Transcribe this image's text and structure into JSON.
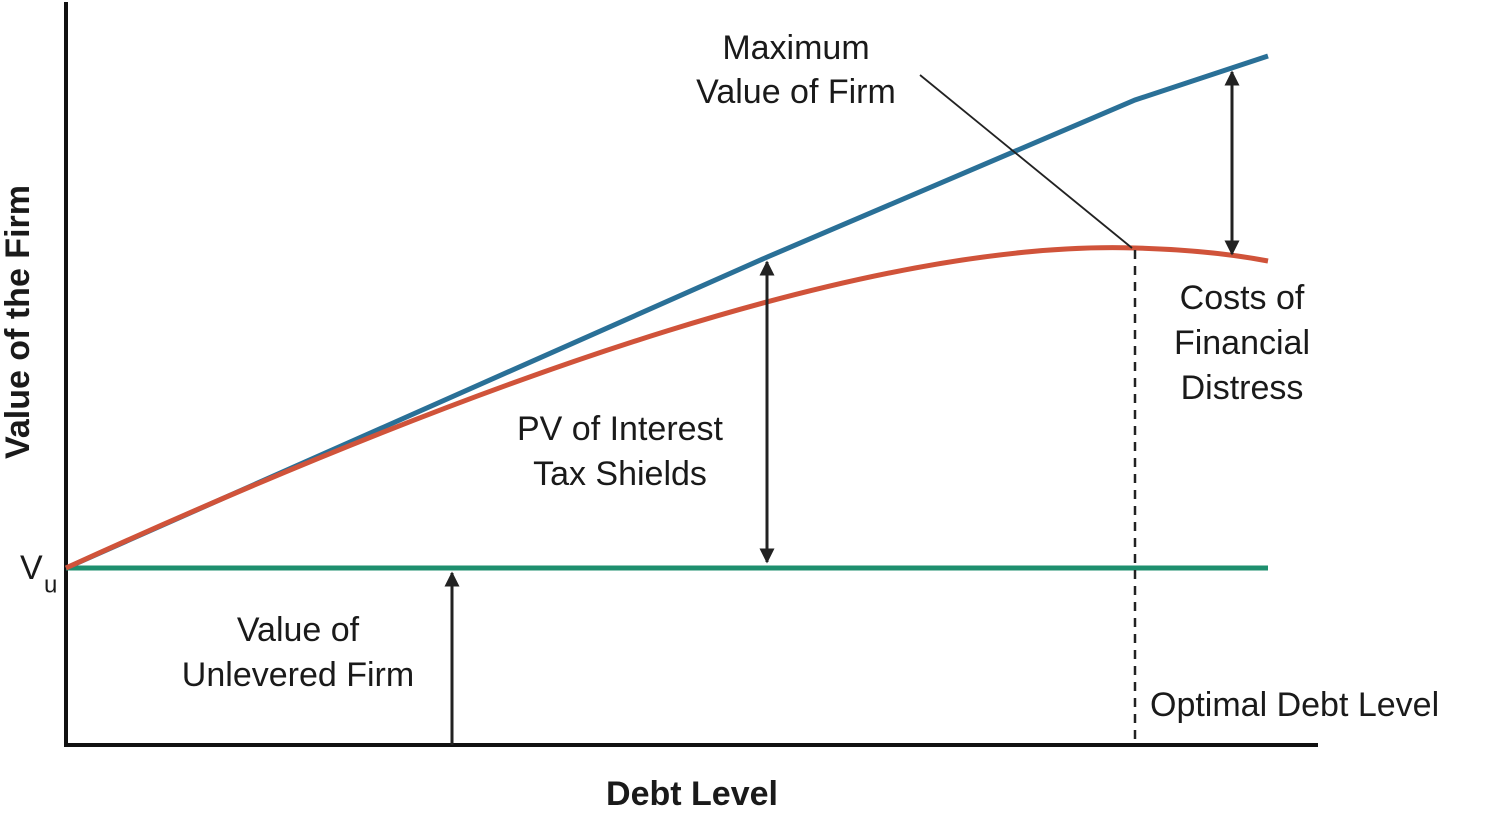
{
  "axes": {
    "x_label": "Debt Level",
    "y_label": "Value of the Firm"
  },
  "vu_label": {
    "main": "V",
    "sub": "u"
  },
  "annotations": {
    "maximum_value": [
      "Maximum",
      "Value of Firm"
    ],
    "costs_of_distress": [
      "Costs of",
      "Financial",
      "Distress"
    ],
    "pv_tax_shields": [
      "PV of Interest",
      "Tax Shields"
    ],
    "unlevered_value": [
      "Value of",
      "Unlevered Firm"
    ],
    "optimal_debt": "Optimal Debt Level"
  }
}
